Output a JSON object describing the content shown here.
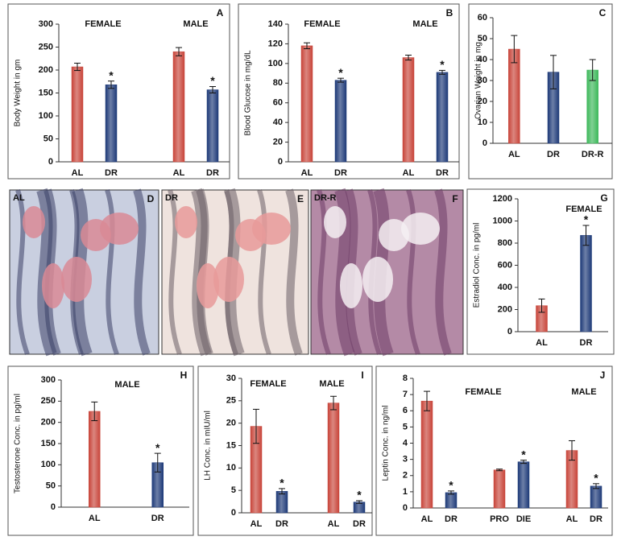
{
  "chart_data": [
    {
      "type": "bar",
      "panel": "A",
      "y_label": "Body Weight in gm",
      "group_labels": [
        "FEMALE",
        "MALE"
      ],
      "categories": [
        "AL",
        "DR",
        null,
        "AL",
        "DR"
      ],
      "values": [
        207,
        168,
        null,
        240,
        157
      ],
      "errors": [
        8,
        8,
        null,
        9,
        7
      ],
      "colors": [
        "#c8453a",
        "#1e3a78",
        null,
        "#c8453a",
        "#1e3a78"
      ],
      "value_annotations": [
        null,
        "*",
        null,
        null,
        "*"
      ],
      "ylim": [
        0,
        300
      ],
      "yticks": [
        0,
        50,
        100,
        150,
        200,
        250,
        300
      ]
    },
    {
      "type": "bar",
      "panel": "B",
      "y_label": "Blood Glucose in mg/dL",
      "group_labels": [
        "FEMALE",
        "MALE"
      ],
      "categories": [
        "AL",
        "DR",
        null,
        "AL",
        "DR"
      ],
      "values": [
        118,
        83,
        null,
        106,
        91
      ],
      "errors": [
        3,
        2,
        null,
        2.5,
        2
      ],
      "colors": [
        "#c8453a",
        "#1e3a78",
        null,
        "#c8453a",
        "#1e3a78"
      ],
      "value_annotations": [
        null,
        "*",
        null,
        null,
        "*"
      ],
      "ylim": [
        0,
        140
      ],
      "yticks": [
        0,
        20,
        40,
        60,
        80,
        100,
        120,
        140
      ]
    },
    {
      "type": "bar",
      "panel": "C",
      "y_label": "Ovarian Weight in mg",
      "categories": [
        "AL",
        "DR",
        "DR-R"
      ],
      "values": [
        45,
        34,
        35
      ],
      "errors": [
        6.5,
        8,
        5
      ],
      "colors": [
        "#c8453a",
        "#1e3a78",
        "#3db85a"
      ],
      "ylim": [
        0,
        60
      ],
      "yticks": [
        0,
        10,
        20,
        30,
        40,
        50,
        60
      ]
    },
    {
      "type": "bar",
      "panel": "G",
      "y_label": "Estradiol Conc. in pg/ml",
      "group_labels": [
        "FEMALE"
      ],
      "categories": [
        "AL",
        "DR"
      ],
      "values": [
        235,
        870
      ],
      "errors": [
        60,
        90
      ],
      "colors": [
        "#c8453a",
        "#1e3a78"
      ],
      "value_annotations": [
        null,
        "*"
      ],
      "ylim": [
        0,
        1200
      ],
      "yticks": [
        0,
        200,
        400,
        600,
        800,
        1000,
        1200
      ]
    },
    {
      "type": "bar",
      "panel": "H",
      "y_label": "Testosterone Conc. in pg/ml",
      "group_labels": [
        "MALE"
      ],
      "categories": [
        "AL",
        "DR"
      ],
      "values": [
        226,
        105
      ],
      "errors": [
        22,
        22
      ],
      "colors": [
        "#c8453a",
        "#1e3a78"
      ],
      "value_annotations": [
        null,
        "*"
      ],
      "ylim": [
        0,
        300
      ],
      "yticks": [
        0,
        50,
        100,
        150,
        200,
        250,
        300
      ]
    },
    {
      "type": "bar",
      "panel": "I",
      "y_label": "LH Conc. in mIU/ml",
      "group_labels": [
        "FEMALE",
        "MALE"
      ],
      "categories": [
        "AL",
        "DR",
        null,
        "AL",
        "DR"
      ],
      "values": [
        19.3,
        4.8,
        null,
        24.5,
        2.4
      ],
      "errors": [
        3.8,
        0.6,
        null,
        1.5,
        0.3
      ],
      "colors": [
        "#c8453a",
        "#1e3a78",
        null,
        "#c8453a",
        "#1e3a78"
      ],
      "value_annotations": [
        null,
        "*",
        null,
        null,
        "*"
      ],
      "ylim": [
        0,
        30
      ],
      "yticks": [
        0,
        5,
        10,
        15,
        20,
        25,
        30
      ]
    },
    {
      "type": "bar",
      "panel": "J",
      "y_label": "Leptin Conc. in ng/ml",
      "group_labels": [
        "FEMALE",
        "MALE"
      ],
      "categories": [
        "AL",
        "DR",
        null,
        "PRO",
        "DIE",
        null,
        "AL",
        "DR"
      ],
      "values": [
        6.6,
        0.95,
        null,
        2.35,
        2.85,
        null,
        3.55,
        1.35
      ],
      "errors": [
        0.6,
        0.1,
        null,
        0.05,
        0.1,
        null,
        0.6,
        0.15
      ],
      "colors": [
        "#c8453a",
        "#1e3a78",
        null,
        "#c8453a",
        "#1e3a78",
        null,
        "#c8453a",
        "#1e3a78"
      ],
      "value_annotations": [
        null,
        "*",
        null,
        null,
        "*",
        null,
        null,
        "*"
      ],
      "ylim": [
        0,
        8
      ],
      "yticks": [
        0,
        1,
        2,
        3,
        4,
        5,
        6,
        7,
        8
      ]
    }
  ],
  "micrographs": [
    {
      "panel": "D",
      "label": "AL"
    },
    {
      "panel": "E",
      "label": "DR"
    },
    {
      "panel": "F",
      "label": "DR-R"
    }
  ]
}
